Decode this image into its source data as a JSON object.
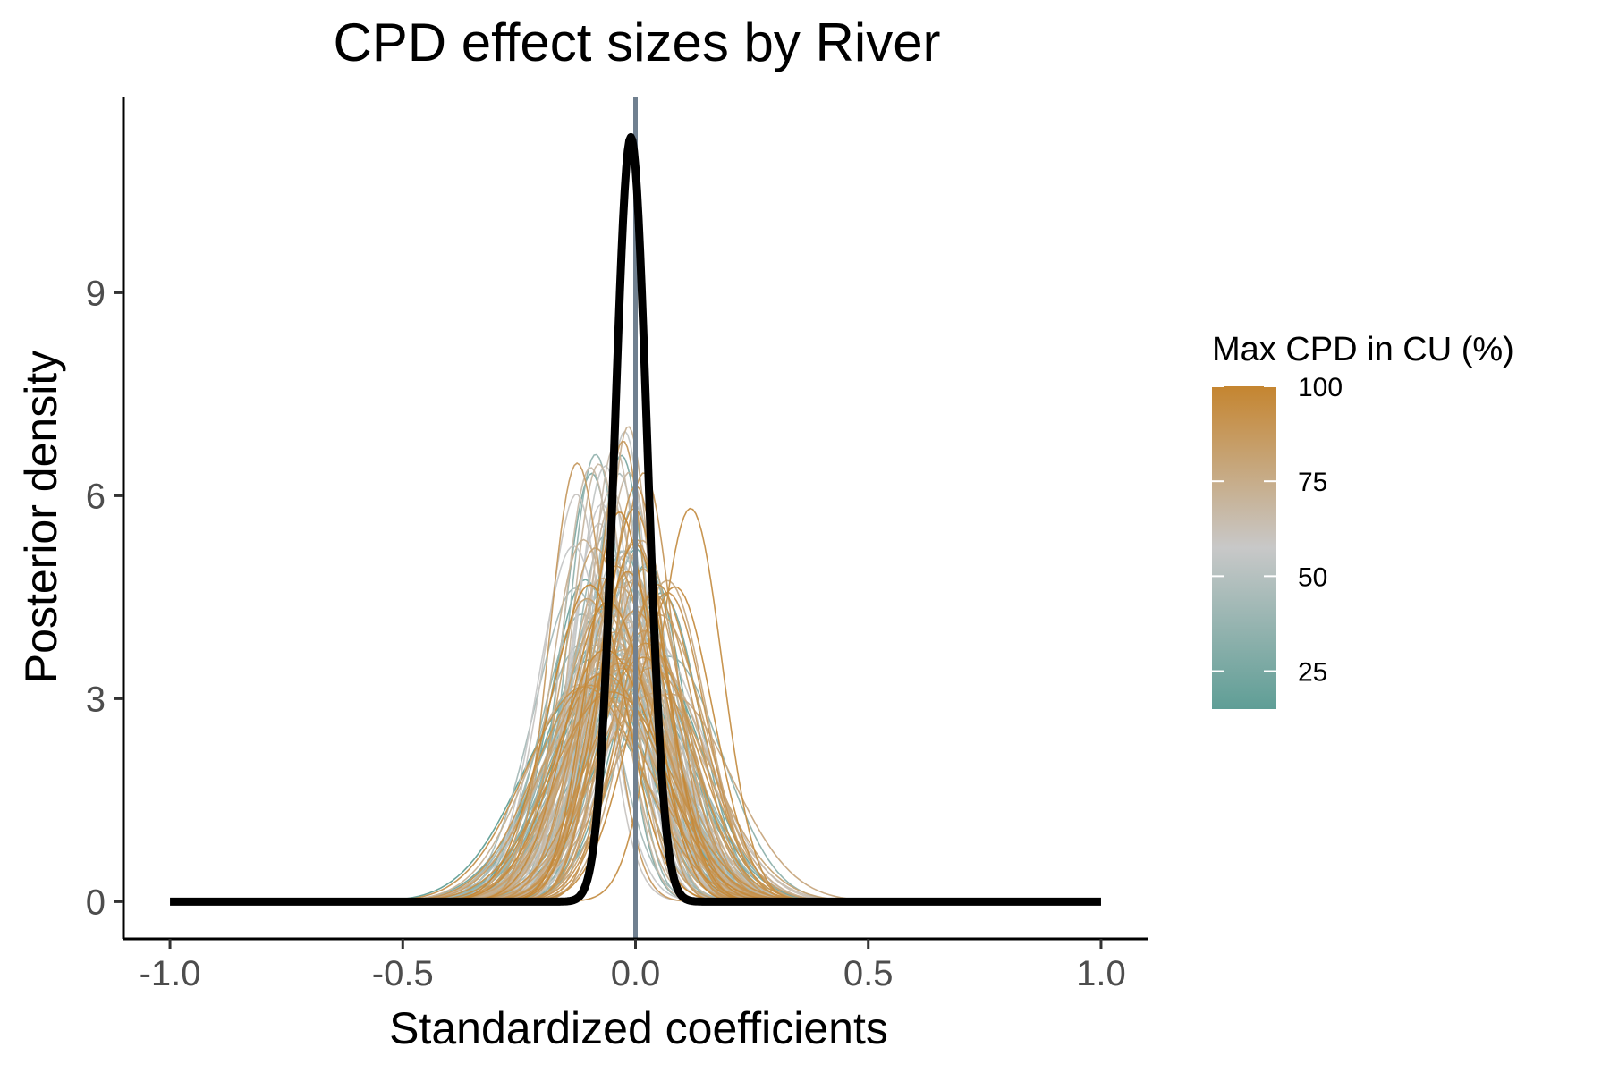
{
  "chart_data": {
    "type": "line",
    "title": "CPD effect sizes by River",
    "xlabel": "Standardized coefficients",
    "ylabel": "Posterior density",
    "xlim": [
      -1.1,
      1.1
    ],
    "ylim": [
      -0.55,
      11.9
    ],
    "x_ticks": [
      -1.0,
      -0.5,
      0.0,
      0.5,
      1.0
    ],
    "x_tick_labels": [
      "-1.0",
      "-0.5",
      "0.0",
      "0.5",
      "1.0"
    ],
    "y_ticks": [
      0,
      3,
      6,
      9
    ],
    "y_tick_labels": [
      "0",
      "3",
      "6",
      "9"
    ],
    "grid": false,
    "reference_line": {
      "x": 0.0,
      "color": "#708090"
    },
    "legend": {
      "title": "Max CPD in CU (%)",
      "placement": "right",
      "type": "colorbar",
      "range": [
        15,
        100
      ],
      "breaks": [
        25,
        50,
        75,
        100
      ],
      "break_labels": [
        "25",
        "50",
        "75",
        "100"
      ],
      "colors": {
        "low": "#5F9E96",
        "mid": "#C8C8C8",
        "high": "#C58530"
      }
    },
    "prior_curve": {
      "description_in_plot": "thick black curve",
      "color": "#000000",
      "mean": -0.01,
      "sd": 0.035,
      "peak_density": 11.3,
      "x_range": [
        -1.0,
        1.0
      ]
    },
    "river_curves": {
      "count": 140,
      "mean_range": [
        -0.18,
        0.12
      ],
      "sd_range": [
        0.06,
        0.13
      ],
      "peak_density_range": [
        2.0,
        6.8
      ],
      "cpd_range_percent": [
        15,
        100
      ]
    }
  }
}
